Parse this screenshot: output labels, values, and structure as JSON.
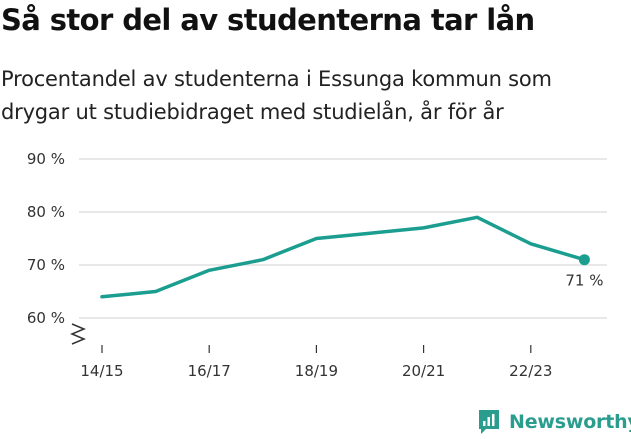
{
  "header": {
    "title": "Så stor del av studenterna tar lån",
    "subtitle": "Procentandel av studenterna i Essunga kommun som drygar ut studiebidraget med studielån, år för år"
  },
  "brand": {
    "name": "Newsworthy",
    "icon": "newsworthy-logo-icon",
    "color": "#2a9d8f"
  },
  "chart_data": {
    "type": "line",
    "categories": [
      "14/15",
      "15/16",
      "16/17",
      "17/18",
      "18/19",
      "19/20",
      "20/21",
      "21/22",
      "22/23",
      "23/24"
    ],
    "x_tick_labels": [
      "14/15",
      "16/17",
      "18/19",
      "20/21",
      "22/23"
    ],
    "series": [
      {
        "values": [
          64,
          65,
          69,
          71,
          75,
          76,
          77,
          79,
          74,
          71
        ],
        "color": "#1b9e8f"
      }
    ],
    "y_ticks": [
      60,
      70,
      80,
      90
    ],
    "y_tick_suffix": " %",
    "ylim": [
      56,
      90
    ],
    "y_axis_break": true,
    "last_value_label": "71 %",
    "grid": true,
    "title": "Så stor del av studenterna tar lån",
    "xlabel": "",
    "ylabel": ""
  }
}
